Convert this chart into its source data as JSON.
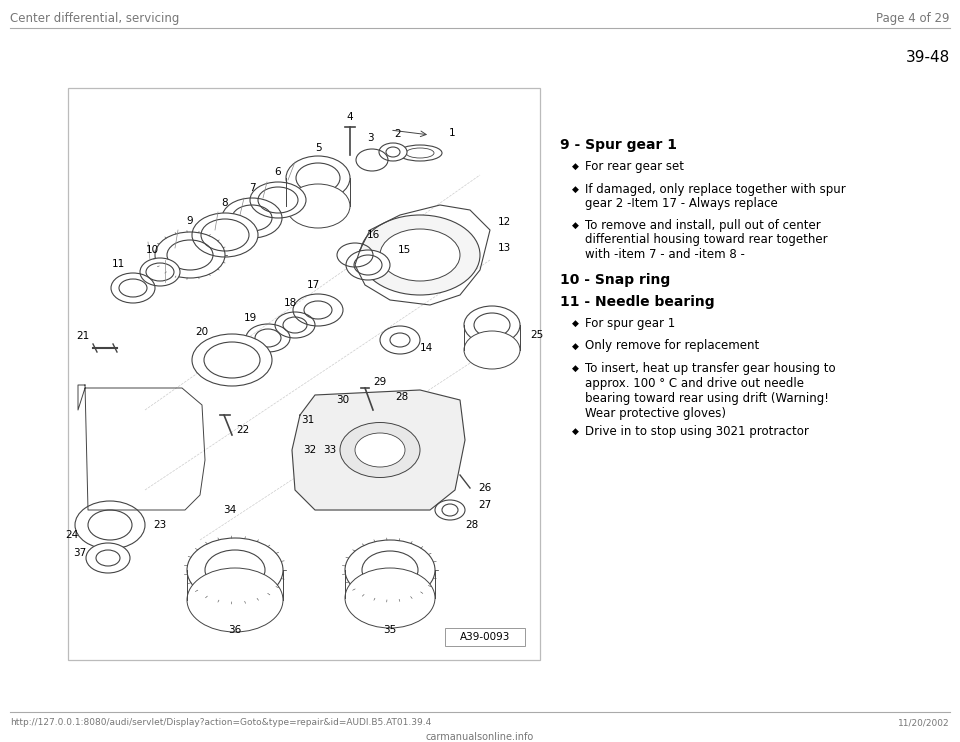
{
  "bg_color": "#ffffff",
  "header_left": "Center differential, servicing",
  "header_right": "Page 4 of 29",
  "header_color": "#777777",
  "page_number": "39-48",
  "footer_url": "http://127.0.0.1:8080/audi/servlet/Display?action=Goto&type=repair&id=AUDI.B5.AT01.39.4",
  "footer_right": "11/20/2002",
  "footer_site": "carmanualsonline.info",
  "image_label": "A39-0093",
  "bullet_char": "◆",
  "item9_title": "9 - Spur gear 1",
  "item9_bullets": [
    "For rear gear set",
    "If damaged, only replace together with spur\ngear 2 -Item 17 - Always replace",
    "To remove and install, pull out of center\ndifferential housing toward rear together\nwith -item 7 - and -item 8 -"
  ],
  "item10_title": "10 - Snap ring",
  "item11_title": "11 - Needle bearing",
  "item11_bullets": [
    "For spur gear 1",
    "Only remove for replacement",
    "To insert, heat up transfer gear housing to\napprox. 100 ° C and drive out needle\nbearing toward rear using drift (Warning!\nWear protective gloves)",
    "Drive in to stop using 3021 protractor"
  ],
  "line_color": "#aaaaaa",
  "draw_color": "#444444",
  "label_color": "#000000",
  "text_color": "#000000"
}
